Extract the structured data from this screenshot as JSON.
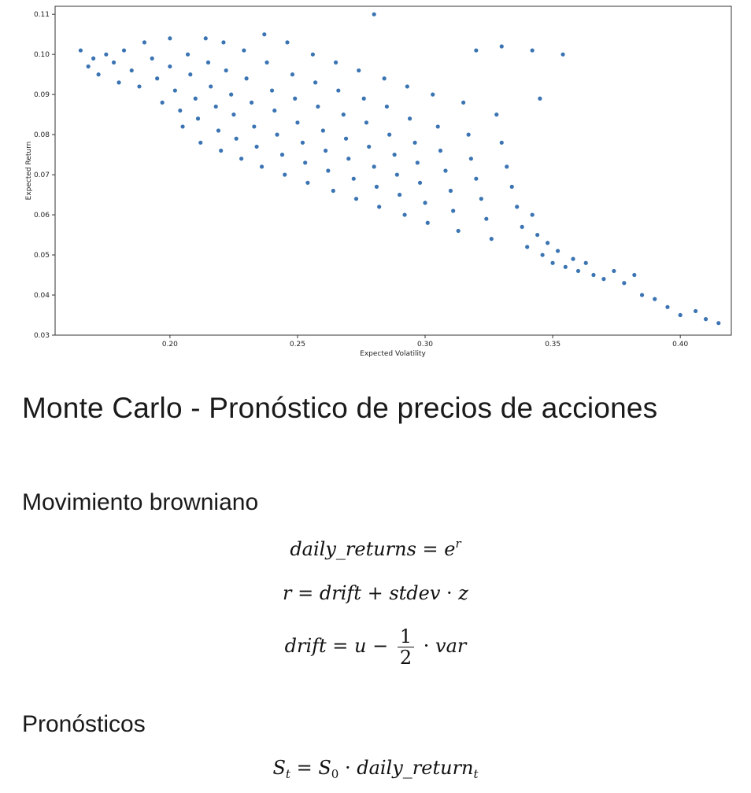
{
  "chart_data": {
    "type": "scatter",
    "xlabel": "Expected Volatility",
    "ylabel": "Expected Return",
    "xlim": [
      0.155,
      0.42
    ],
    "ylim": [
      0.03,
      0.112
    ],
    "x_ticks": [
      "0.20",
      "0.25",
      "0.30",
      "0.35",
      "0.40"
    ],
    "x_tick_values": [
      0.2,
      0.25,
      0.3,
      0.35,
      0.4
    ],
    "y_ticks": [
      "0.03",
      "0.04",
      "0.05",
      "0.06",
      "0.07",
      "0.08",
      "0.09",
      "0.10",
      "0.11"
    ],
    "y_tick_values": [
      0.03,
      0.04,
      0.05,
      0.06,
      0.07,
      0.08,
      0.09,
      0.1,
      0.11
    ],
    "marker_color": "#3a74b3",
    "points": [
      [
        0.165,
        0.101
      ],
      [
        0.168,
        0.097
      ],
      [
        0.17,
        0.099
      ],
      [
        0.172,
        0.095
      ],
      [
        0.175,
        0.1
      ],
      [
        0.178,
        0.098
      ],
      [
        0.18,
        0.093
      ],
      [
        0.182,
        0.101
      ],
      [
        0.185,
        0.096
      ],
      [
        0.188,
        0.092
      ],
      [
        0.19,
        0.103
      ],
      [
        0.193,
        0.099
      ],
      [
        0.195,
        0.094
      ],
      [
        0.197,
        0.088
      ],
      [
        0.2,
        0.104
      ],
      [
        0.2,
        0.097
      ],
      [
        0.202,
        0.091
      ],
      [
        0.204,
        0.086
      ],
      [
        0.205,
        0.082
      ],
      [
        0.207,
        0.1
      ],
      [
        0.208,
        0.095
      ],
      [
        0.21,
        0.089
      ],
      [
        0.211,
        0.084
      ],
      [
        0.212,
        0.078
      ],
      [
        0.214,
        0.104
      ],
      [
        0.215,
        0.098
      ],
      [
        0.216,
        0.092
      ],
      [
        0.218,
        0.087
      ],
      [
        0.219,
        0.081
      ],
      [
        0.22,
        0.076
      ],
      [
        0.221,
        0.103
      ],
      [
        0.222,
        0.096
      ],
      [
        0.224,
        0.09
      ],
      [
        0.225,
        0.085
      ],
      [
        0.226,
        0.079
      ],
      [
        0.228,
        0.074
      ],
      [
        0.229,
        0.101
      ],
      [
        0.23,
        0.094
      ],
      [
        0.232,
        0.088
      ],
      [
        0.233,
        0.082
      ],
      [
        0.234,
        0.077
      ],
      [
        0.236,
        0.072
      ],
      [
        0.237,
        0.105
      ],
      [
        0.238,
        0.098
      ],
      [
        0.24,
        0.091
      ],
      [
        0.241,
        0.086
      ],
      [
        0.242,
        0.08
      ],
      [
        0.244,
        0.075
      ],
      [
        0.245,
        0.07
      ],
      [
        0.246,
        0.103
      ],
      [
        0.248,
        0.095
      ],
      [
        0.249,
        0.089
      ],
      [
        0.25,
        0.083
      ],
      [
        0.252,
        0.078
      ],
      [
        0.253,
        0.073
      ],
      [
        0.254,
        0.068
      ],
      [
        0.256,
        0.1
      ],
      [
        0.257,
        0.093
      ],
      [
        0.258,
        0.087
      ],
      [
        0.26,
        0.081
      ],
      [
        0.261,
        0.076
      ],
      [
        0.262,
        0.071
      ],
      [
        0.264,
        0.066
      ],
      [
        0.265,
        0.098
      ],
      [
        0.266,
        0.091
      ],
      [
        0.268,
        0.085
      ],
      [
        0.269,
        0.079
      ],
      [
        0.27,
        0.074
      ],
      [
        0.272,
        0.069
      ],
      [
        0.273,
        0.064
      ],
      [
        0.274,
        0.096
      ],
      [
        0.276,
        0.089
      ],
      [
        0.277,
        0.083
      ],
      [
        0.278,
        0.077
      ],
      [
        0.28,
        0.072
      ],
      [
        0.281,
        0.067
      ],
      [
        0.282,
        0.062
      ],
      [
        0.284,
        0.094
      ],
      [
        0.285,
        0.087
      ],
      [
        0.286,
        0.08
      ],
      [
        0.288,
        0.075
      ],
      [
        0.289,
        0.07
      ],
      [
        0.29,
        0.065
      ],
      [
        0.292,
        0.06
      ],
      [
        0.293,
        0.092
      ],
      [
        0.294,
        0.084
      ],
      [
        0.296,
        0.078
      ],
      [
        0.297,
        0.073
      ],
      [
        0.298,
        0.068
      ],
      [
        0.3,
        0.063
      ],
      [
        0.301,
        0.058
      ],
      [
        0.303,
        0.09
      ],
      [
        0.305,
        0.082
      ],
      [
        0.306,
        0.076
      ],
      [
        0.308,
        0.071
      ],
      [
        0.31,
        0.066
      ],
      [
        0.311,
        0.061
      ],
      [
        0.313,
        0.056
      ],
      [
        0.315,
        0.088
      ],
      [
        0.317,
        0.08
      ],
      [
        0.318,
        0.074
      ],
      [
        0.32,
        0.069
      ],
      [
        0.322,
        0.064
      ],
      [
        0.324,
        0.059
      ],
      [
        0.326,
        0.054
      ],
      [
        0.328,
        0.085
      ],
      [
        0.33,
        0.078
      ],
      [
        0.332,
        0.072
      ],
      [
        0.334,
        0.067
      ],
      [
        0.336,
        0.062
      ],
      [
        0.338,
        0.057
      ],
      [
        0.34,
        0.052
      ],
      [
        0.342,
        0.06
      ],
      [
        0.344,
        0.055
      ],
      [
        0.346,
        0.05
      ],
      [
        0.348,
        0.053
      ],
      [
        0.35,
        0.048
      ],
      [
        0.352,
        0.051
      ],
      [
        0.355,
        0.047
      ],
      [
        0.358,
        0.049
      ],
      [
        0.36,
        0.046
      ],
      [
        0.363,
        0.048
      ],
      [
        0.366,
        0.045
      ],
      [
        0.37,
        0.044
      ],
      [
        0.374,
        0.046
      ],
      [
        0.378,
        0.043
      ],
      [
        0.382,
        0.045
      ],
      [
        0.385,
        0.04
      ],
      [
        0.39,
        0.039
      ],
      [
        0.395,
        0.037
      ],
      [
        0.4,
        0.035
      ],
      [
        0.406,
        0.036
      ],
      [
        0.41,
        0.034
      ],
      [
        0.415,
        0.033
      ],
      [
        0.28,
        0.11
      ],
      [
        0.32,
        0.101
      ],
      [
        0.33,
        0.102
      ],
      [
        0.342,
        0.101
      ],
      [
        0.354,
        0.1
      ],
      [
        0.345,
        0.089
      ]
    ]
  },
  "markdown": {
    "title": "Monte Carlo - Pronóstico de precios de acciones",
    "section_brownian": "Movimiento browniano",
    "section_forecast": "Pronósticos"
  },
  "equations": {
    "eq1_lhs": "daily_returns",
    "eq1_base": "e",
    "eq1_exp": "r",
    "eq2_lhs": "r",
    "eq2_drift": "drift",
    "eq2_stdev": "stdev",
    "eq2_z": "z",
    "eq3_lhs": "drift",
    "eq3_u": "u",
    "eq3_num": "1",
    "eq3_den": "2",
    "eq3_var": "var",
    "eq4_S": "S",
    "eq4_t": "t",
    "eq4_zero": "0",
    "eq4_ret": "daily_return",
    "eq4_sub": "t"
  }
}
